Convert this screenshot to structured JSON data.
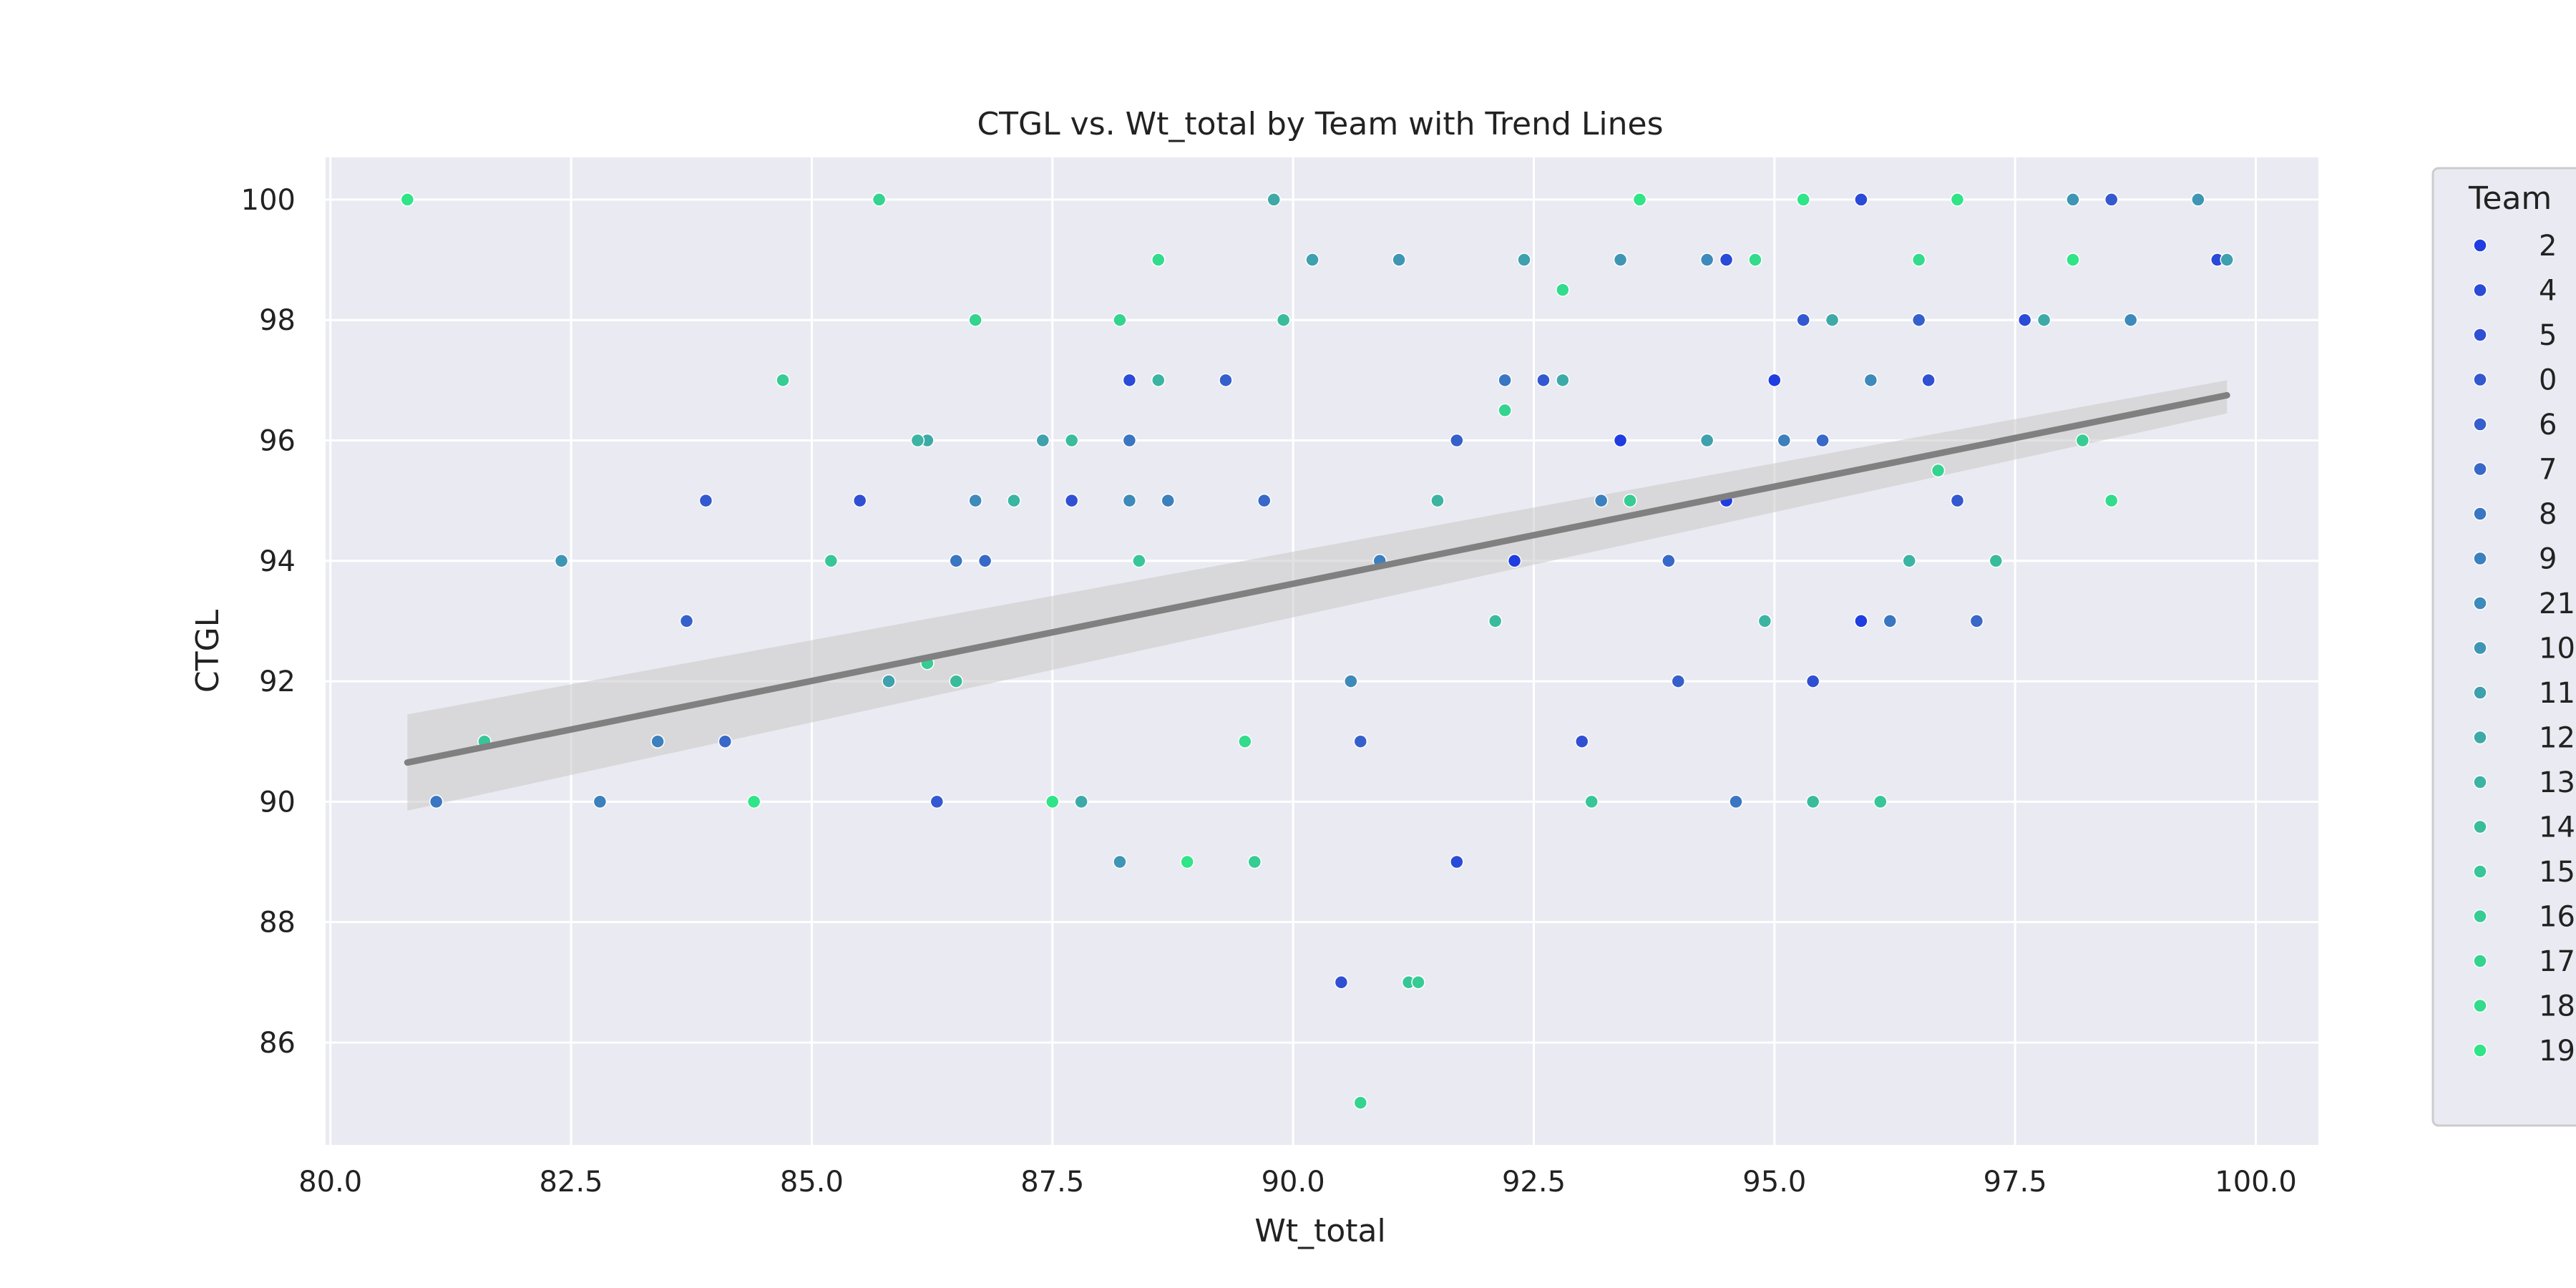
{
  "chart_data": {
    "type": "scatter",
    "title": "CTGL vs. Wt_total by Team with Trend Lines",
    "xlabel": "Wt_total",
    "ylabel": "CTGL",
    "xlim": [
      79.95,
      100.65
    ],
    "ylim": [
      84.3,
      100.7
    ],
    "x_ticks": [
      80.0,
      82.5,
      85.0,
      87.5,
      90.0,
      92.5,
      95.0,
      97.5,
      100.0
    ],
    "x_tick_labels": [
      "80.0",
      "82.5",
      "85.0",
      "87.5",
      "90.0",
      "92.5",
      "95.0",
      "97.5",
      "100.0"
    ],
    "y_ticks": [
      86,
      88,
      90,
      92,
      94,
      96,
      98,
      100
    ],
    "y_tick_labels": [
      "86",
      "88",
      "90",
      "92",
      "94",
      "96",
      "98",
      "100"
    ],
    "grid": true,
    "legend": {
      "title": "Team",
      "placement": "outside-right",
      "entries": [
        {
          "label": "2",
          "color": "#1f3de0"
        },
        {
          "label": "4",
          "color": "#2a4ad8"
        },
        {
          "label": "5",
          "color": "#3050d4"
        },
        {
          "label": "0",
          "color": "#3358d0"
        },
        {
          "label": "6",
          "color": "#3560cc"
        },
        {
          "label": "7",
          "color": "#3868c8"
        },
        {
          "label": "8",
          "color": "#3a76c2"
        },
        {
          "label": "9",
          "color": "#3c80be"
        },
        {
          "label": "21",
          "color": "#3e8aba"
        },
        {
          "label": "10",
          "color": "#3f96b4"
        },
        {
          "label": "11",
          "color": "#3fa0ae"
        },
        {
          "label": "12",
          "color": "#3eaaa8"
        },
        {
          "label": "13",
          "color": "#3cb4a2"
        },
        {
          "label": "14",
          "color": "#3abc9c"
        },
        {
          "label": "15",
          "color": "#38c698"
        },
        {
          "label": "16",
          "color": "#36cc94"
        },
        {
          "label": "17",
          "color": "#34d490"
        },
        {
          "label": "18",
          "color": "#32dc8c"
        },
        {
          "label": "19",
          "color": "#30e488"
        }
      ]
    },
    "trend_line": {
      "color": "#808080",
      "x": [
        80.8,
        99.7
      ],
      "y": [
        90.65,
        96.75
      ],
      "ci_upper": [
        91.45,
        97.0
      ],
      "ci_lower": [
        89.85,
        96.45
      ]
    },
    "series": [
      {
        "team": "2",
        "points": [
          [
            93.6,
            100
          ],
          [
            95.9,
            93
          ],
          [
            93.4,
            96
          ],
          [
            95,
            97
          ],
          [
            94.5,
            95
          ],
          [
            92.3,
            94
          ]
        ]
      },
      {
        "team": "4",
        "points": [
          [
            95.9,
            100
          ],
          [
            99.6,
            99
          ],
          [
            88.3,
            97
          ],
          [
            97.6,
            98
          ],
          [
            91.7,
            89
          ],
          [
            94.5,
            99
          ]
        ]
      },
      {
        "team": "5",
        "points": [
          [
            90.5,
            87
          ],
          [
            85.5,
            95
          ],
          [
            87.7,
            95
          ],
          [
            95.4,
            92
          ],
          [
            96.6,
            97
          ],
          [
            93,
            91
          ]
        ]
      },
      {
        "team": "0",
        "points": [
          [
            83.9,
            95
          ],
          [
            86.3,
            90
          ],
          [
            95.3,
            98
          ],
          [
            92.6,
            97
          ],
          [
            98.5,
            100
          ],
          [
            96.9,
            95
          ]
        ]
      },
      {
        "team": "6",
        "points": [
          [
            83.7,
            93
          ],
          [
            89.3,
            97
          ],
          [
            91.7,
            96
          ],
          [
            96.5,
            98
          ],
          [
            94,
            92
          ],
          [
            90.7,
            91
          ]
        ]
      },
      {
        "team": "7",
        "points": [
          [
            84.1,
            91
          ],
          [
            86.8,
            94
          ],
          [
            89.7,
            95
          ],
          [
            93.9,
            94
          ],
          [
            95.5,
            96
          ],
          [
            97.1,
            93
          ]
        ]
      },
      {
        "team": "8",
        "points": [
          [
            81.1,
            90
          ],
          [
            86.5,
            94
          ],
          [
            88.3,
            96
          ],
          [
            92.2,
            97
          ],
          [
            94.6,
            90
          ],
          [
            96.2,
            93
          ]
        ]
      },
      {
        "team": "9",
        "points": [
          [
            82.8,
            90
          ],
          [
            83.4,
            91
          ],
          [
            88.7,
            95
          ],
          [
            90.9,
            94
          ],
          [
            93.2,
            95
          ],
          [
            95.1,
            96
          ]
        ]
      },
      {
        "team": "21",
        "points": [
          [
            86.7,
            95
          ],
          [
            88.3,
            95
          ],
          [
            90.6,
            92
          ],
          [
            94.3,
            99
          ],
          [
            96,
            97
          ],
          [
            98.7,
            98
          ]
        ]
      },
      {
        "team": "10",
        "points": [
          [
            82.4,
            94
          ],
          [
            88.2,
            89
          ],
          [
            91.1,
            99
          ],
          [
            93.4,
            99
          ],
          [
            98.1,
            100
          ],
          [
            99.4,
            100
          ]
        ]
      },
      {
        "team": "11",
        "points": [
          [
            85.8,
            92
          ],
          [
            87.4,
            96
          ],
          [
            90.2,
            99
          ],
          [
            92.4,
            99
          ],
          [
            94.3,
            96
          ],
          [
            99.7,
            99
          ]
        ]
      },
      {
        "team": "12",
        "points": [
          [
            86.2,
            96
          ],
          [
            87.8,
            90
          ],
          [
            89.8,
            100
          ],
          [
            92.8,
            97
          ],
          [
            95.6,
            98
          ],
          [
            97.8,
            98
          ]
        ]
      },
      {
        "team": "13",
        "points": [
          [
            86.1,
            96
          ],
          [
            87.1,
            95
          ],
          [
            88.6,
            97
          ],
          [
            91.5,
            95
          ],
          [
            94.9,
            93
          ],
          [
            96.4,
            94
          ]
        ]
      },
      {
        "team": "14",
        "points": [
          [
            86.5,
            92
          ],
          [
            87.7,
            96
          ],
          [
            89.9,
            98
          ],
          [
            92.1,
            93
          ],
          [
            95.4,
            90
          ],
          [
            97.3,
            94
          ]
        ]
      },
      {
        "team": "15",
        "points": [
          [
            81.6,
            91
          ],
          [
            85.2,
            94
          ],
          [
            88.4,
            94
          ],
          [
            91.2,
            87
          ],
          [
            93.1,
            90
          ],
          [
            96.1,
            90
          ]
        ]
      },
      {
        "team": "16",
        "points": [
          [
            84.7,
            97
          ],
          [
            86.2,
            92.3
          ],
          [
            89.6,
            89
          ],
          [
            91.3,
            87
          ],
          [
            93.5,
            95
          ],
          [
            98.2,
            96
          ]
        ]
      },
      {
        "team": "17",
        "points": [
          [
            85.7,
            100
          ],
          [
            86.7,
            98
          ],
          [
            88.2,
            98
          ],
          [
            90.7,
            85
          ],
          [
            92.2,
            96.5
          ],
          [
            96.7,
            95.5
          ]
        ]
      },
      {
        "team": "18",
        "points": [
          [
            88.6,
            99
          ],
          [
            89.5,
            91
          ],
          [
            92.8,
            98.5
          ],
          [
            94.8,
            99
          ],
          [
            96.5,
            99
          ],
          [
            98.5,
            95
          ]
        ]
      },
      {
        "team": "19",
        "points": [
          [
            80.8,
            100
          ],
          [
            84.4,
            90
          ],
          [
            87.5,
            90
          ],
          [
            88.9,
            89
          ],
          [
            93.6,
            100
          ],
          [
            95.3,
            100
          ],
          [
            96.9,
            100
          ],
          [
            98.1,
            99
          ]
        ]
      }
    ]
  }
}
